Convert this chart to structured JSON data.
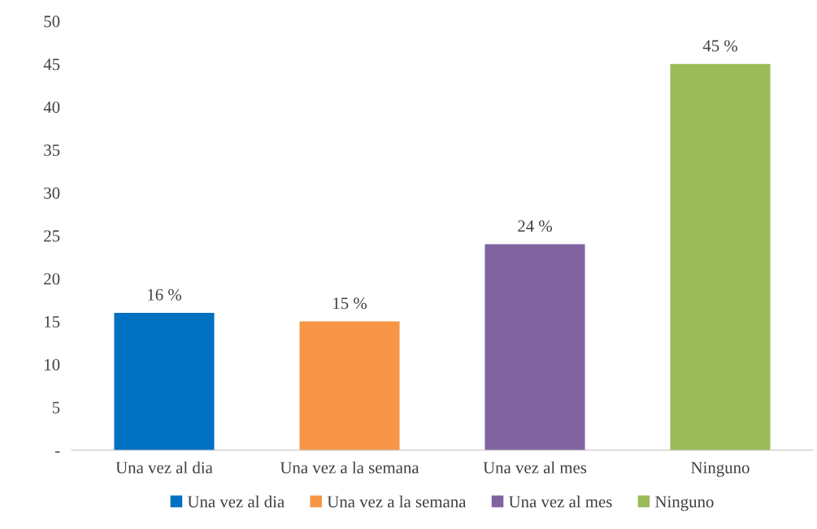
{
  "chart_data": {
    "type": "bar",
    "categories": [
      "Una vez al dia",
      "Una vez a la semana",
      "Una vez al mes",
      "Ninguno"
    ],
    "series": [
      {
        "name": "Una vez al dia",
        "color": "#0070c0",
        "values": [
          16,
          null,
          null,
          null
        ],
        "value_labels": [
          "16 %",
          null,
          null,
          null
        ]
      },
      {
        "name": "Una vez a la semana",
        "color": "#f79646",
        "values": [
          null,
          15,
          null,
          null
        ],
        "value_labels": [
          null,
          "15 %",
          null,
          null
        ]
      },
      {
        "name": "Una vez al mes",
        "color": "#8064a2",
        "values": [
          null,
          null,
          24,
          null
        ],
        "value_labels": [
          null,
          null,
          "24 %",
          null
        ]
      },
      {
        "name": "Ninguno",
        "color": "#9bbb59",
        "values": [
          null,
          null,
          null,
          45
        ],
        "value_labels": [
          null,
          null,
          null,
          "45 %"
        ]
      }
    ],
    "ylim": [
      0,
      50
    ],
    "yticks": [
      {
        "value": 0,
        "label": "-"
      },
      5,
      10,
      15,
      20,
      25,
      30,
      35,
      40,
      45,
      50
    ],
    "grid": false,
    "legend": "bottom"
  }
}
